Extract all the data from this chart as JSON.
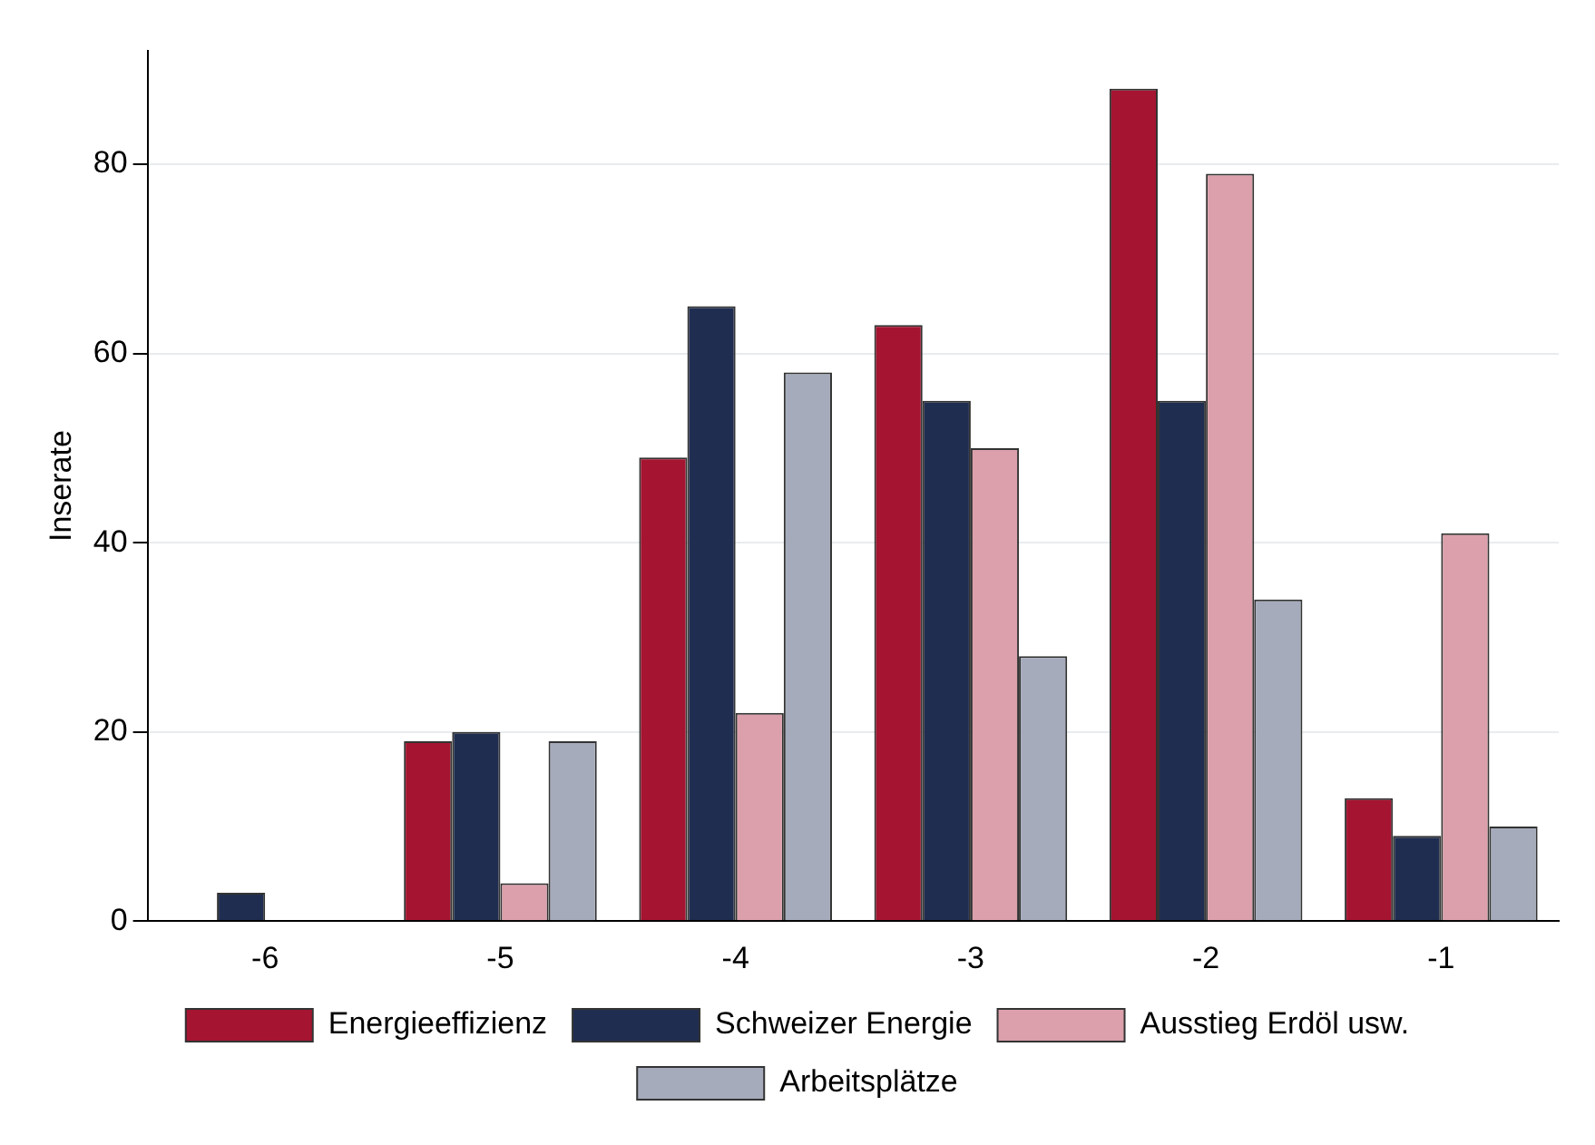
{
  "chart_data": {
    "type": "bar",
    "ylabel": "Inserate",
    "categories": [
      "-6",
      "-5",
      "-4",
      "-3",
      "-2",
      "-1"
    ],
    "series": [
      {
        "name": "Energieeffizienz",
        "color": "#a51430",
        "values": [
          0,
          19,
          49,
          63,
          88,
          13
        ]
      },
      {
        "name": "Schweizer Energie",
        "color": "#1f2d50",
        "values": [
          3,
          20,
          65,
          55,
          55,
          9
        ]
      },
      {
        "name": "Ausstieg Erdöl usw.",
        "color": "#dba0ab",
        "values": [
          0,
          4,
          22,
          50,
          79,
          41
        ]
      },
      {
        "name": "Arbeitsplätze",
        "color": "#a5abbb",
        "values": [
          0,
          19,
          58,
          28,
          34,
          10
        ]
      }
    ],
    "ylim": [
      0,
      92
    ],
    "yticks": [
      0,
      20,
      40,
      60,
      80
    ],
    "grid": "y",
    "legend": "bottom"
  }
}
